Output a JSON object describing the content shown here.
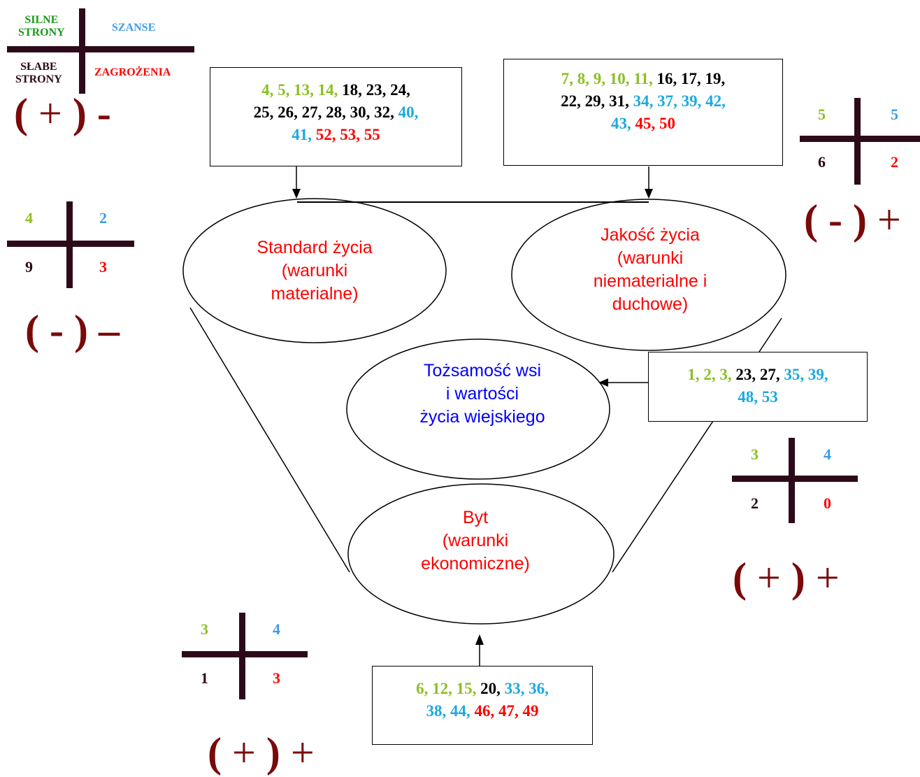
{
  "colors": {
    "strength": "#8cbf26",
    "strength_legend": "#1a9a1a",
    "opportunity": "#1aa9e0",
    "opportunity_legend": "#3d9be9",
    "weakness": "#000000",
    "weakness_legend": "#2d0a1a",
    "threat": "#ff0000",
    "sign": "#7a0a0a",
    "ellipse_text_red": "#ff0000",
    "ellipse_text_blue": "#0000ff"
  },
  "legend": {
    "strengths_line1": "SILNE",
    "strengths_line2": "STRONY",
    "opportunities": "SZANSE",
    "weaknesses_line1": "SŁABE",
    "weaknesses_line2": "STRONY",
    "threats": "ZAGROŻENIA"
  },
  "signs": {
    "top_left": {
      "open": "(",
      "inner": "+",
      "close": ")",
      "trail": "-"
    },
    "left": {
      "open": "(",
      "inner": "-",
      "close": ")",
      "trail": "–"
    },
    "top_right": {
      "open": "(",
      "inner": "-",
      "close": ")",
      "trail": "+"
    },
    "right": {
      "open": "(",
      "inner": "+",
      "close": ")",
      "trail": "+"
    },
    "bottom": {
      "open": "(",
      "inner": "+",
      "close": ")",
      "trail": "+"
    }
  },
  "crosses": {
    "standard": {
      "s": "4",
      "o": "2",
      "w": "9",
      "t": "3"
    },
    "quality": {
      "s": "5",
      "o": "5",
      "w": "6",
      "t": "2"
    },
    "identity": {
      "s": "3",
      "o": "4",
      "w": "2",
      "t": "0"
    },
    "living": {
      "s": "3",
      "o": "4",
      "w": "1",
      "t": "3"
    }
  },
  "ellipses": {
    "standard": [
      "Standard życia",
      "(warunki",
      "materialne)"
    ],
    "quality": [
      "Jakość życia",
      "(warunki",
      "niematerialne i",
      "duchowe)"
    ],
    "identity": [
      "Tożsamość wsi",
      "i wartości",
      "życia wiejskiego"
    ],
    "living": [
      "Byt",
      "(warunki",
      "ekonomiczne)"
    ]
  },
  "boxes": {
    "standard": {
      "line1": [
        {
          "t": "4, 5, 13, 14, ",
          "c": "s"
        },
        {
          "t": "18, 23, 24,",
          "c": "w"
        }
      ],
      "line2": [
        {
          "t": "25, 26, 27, 28, 30, 32, ",
          "c": "w"
        },
        {
          "t": "40,",
          "c": "o"
        }
      ],
      "line3": [
        {
          "t": "41, ",
          "c": "o"
        },
        {
          "t": "52, 53, 55",
          "c": "t"
        }
      ]
    },
    "quality": {
      "line1": [
        {
          "t": "7, 8, 9, 10, 11, ",
          "c": "s"
        },
        {
          "t": "16, 17, 19,",
          "c": "w"
        }
      ],
      "line2": [
        {
          "t": "22, 29, 31, ",
          "c": "w"
        },
        {
          "t": "34, 37, 39, 42,",
          "c": "o"
        }
      ],
      "line3": [
        {
          "t": "43,  ",
          "c": "o"
        },
        {
          "t": "45, 50",
          "c": "t"
        }
      ]
    },
    "identity": {
      "line1": [
        {
          "t": "1, 2, 3, ",
          "c": "s"
        },
        {
          "t": "23, 27, ",
          "c": "w"
        },
        {
          "t": "35, 39,",
          "c": "o"
        }
      ],
      "line2": [
        {
          "t": "48, 53",
          "c": "o"
        }
      ]
    },
    "living": {
      "line1": [
        {
          "t": "6, 12, 15, ",
          "c": "s"
        },
        {
          "t": "20, ",
          "c": "w"
        },
        {
          "t": "33, 36,",
          "c": "o"
        }
      ],
      "line2": [
        {
          "t": "38, 44, ",
          "c": "o"
        },
        {
          "t": "46, 47, 49",
          "c": "t"
        }
      ]
    }
  }
}
